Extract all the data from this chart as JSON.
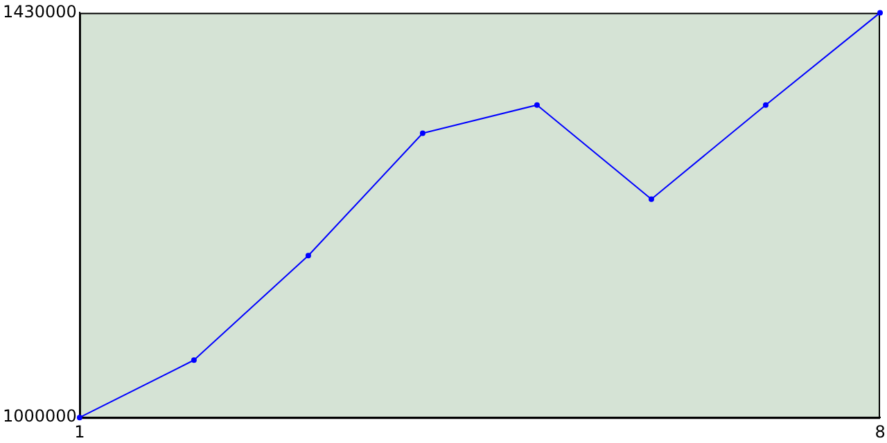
{
  "chart_data": {
    "type": "line",
    "x": [
      1,
      2,
      3,
      4,
      5,
      6,
      7,
      8
    ],
    "series": [
      {
        "color": "#0000ff",
        "values": [
          1000000,
          1061000,
          1172000,
          1302000,
          1332000,
          1232000,
          1332000,
          1430000
        ]
      }
    ],
    "xlim": [
      1,
      8
    ],
    "xticks": [
      1,
      8
    ],
    "ylim": [
      1000000,
      1430000
    ],
    "yticks": [
      1000000,
      1430000
    ],
    "grid": false,
    "legend": false,
    "marker": "circle",
    "line_style": "solid"
  }
}
